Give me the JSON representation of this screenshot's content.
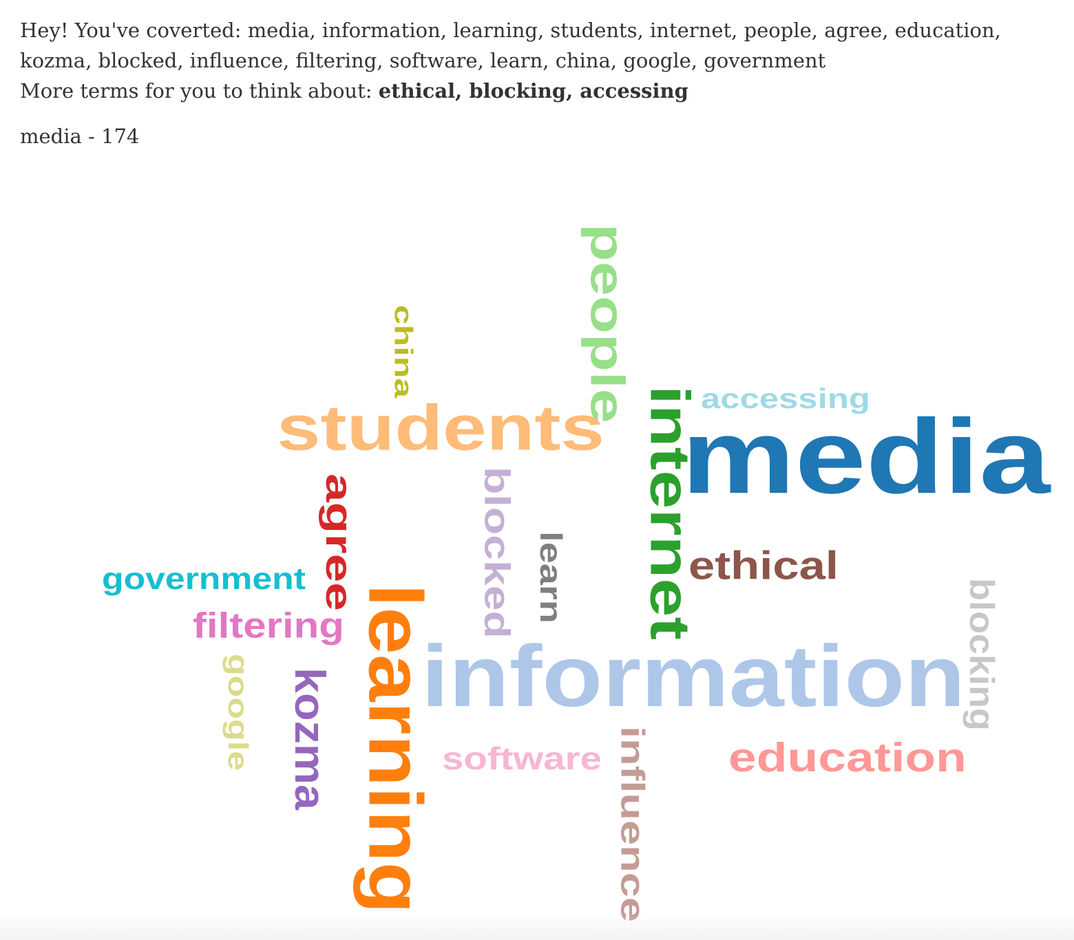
{
  "header": {
    "converted_prefix": "Hey! You've coverted: ",
    "converted_terms": "media, information, learning, students, internet, people, agree, education, kozma, blocked, influence, filtering, software, learn, china, google, government",
    "more_prefix": "More terms for you to think about: ",
    "more_terms": "ethical, blocking, accessing"
  },
  "selected": {
    "label": "media - 174"
  },
  "word_cloud": {
    "words": [
      {
        "text": "media",
        "color": "#1f77b4",
        "orientation": "horizontal"
      },
      {
        "text": "information",
        "color": "#aec7e8",
        "orientation": "horizontal"
      },
      {
        "text": "students",
        "color": "#ffbb78",
        "orientation": "horizontal"
      },
      {
        "text": "people",
        "color": "#98df8a",
        "orientation": "vertical"
      },
      {
        "text": "internet",
        "color": "#2ca02c",
        "orientation": "vertical"
      },
      {
        "text": "accessing",
        "color": "#9edae5",
        "orientation": "horizontal"
      },
      {
        "text": "china",
        "color": "#bcbd22",
        "orientation": "vertical"
      },
      {
        "text": "agree",
        "color": "#d62728",
        "orientation": "vertical"
      },
      {
        "text": "blocked",
        "color": "#c5b0d5",
        "orientation": "vertical"
      },
      {
        "text": "learn",
        "color": "#7f7f7f",
        "orientation": "vertical"
      },
      {
        "text": "ethical",
        "color": "#8c564b",
        "orientation": "horizontal"
      },
      {
        "text": "government",
        "color": "#17becf",
        "orientation": "horizontal"
      },
      {
        "text": "filtering",
        "color": "#e377c2",
        "orientation": "horizontal"
      },
      {
        "text": "learning",
        "color": "#ff7f0e",
        "orientation": "vertical"
      },
      {
        "text": "google",
        "color": "#dbdb8d",
        "orientation": "vertical"
      },
      {
        "text": "kozma",
        "color": "#9467bd",
        "orientation": "vertical"
      },
      {
        "text": "software",
        "color": "#f7b6d2",
        "orientation": "horizontal"
      },
      {
        "text": "influence",
        "color": "#c49c94",
        "orientation": "vertical"
      },
      {
        "text": "education",
        "color": "#ff9896",
        "orientation": "horizontal"
      },
      {
        "text": "blocking",
        "color": "#c7c7c7",
        "orientation": "vertical"
      }
    ]
  }
}
